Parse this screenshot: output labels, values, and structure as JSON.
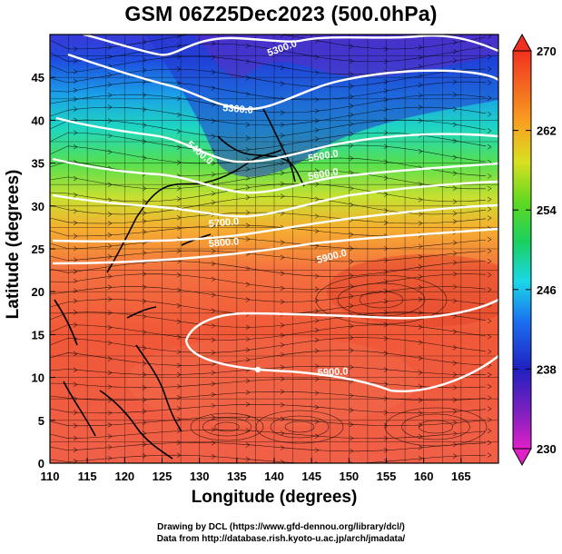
{
  "title": "GSM 06Z25Dec2023 (500.0hPa)",
  "x_axis": {
    "label": "Longitude (degrees)",
    "ticks": [
      "110",
      "115",
      "120",
      "125",
      "130",
      "135",
      "140",
      "145",
      "150",
      "155",
      "160",
      "165"
    ]
  },
  "y_axis": {
    "label": "Latitude  (degrees)",
    "ticks": [
      "0",
      "5",
      "10",
      "15",
      "20",
      "25",
      "30",
      "35",
      "40",
      "45"
    ]
  },
  "colorbar": {
    "ticks": [
      "270",
      "262",
      "254",
      "246",
      "238",
      "230"
    ]
  },
  "contour_labels": [
    "5300.0",
    "5300.0",
    "5400.0",
    "5500.0",
    "5600.0",
    "5700.0",
    "5800.0",
    "5900.0",
    "5900.0"
  ],
  "credits": {
    "line1": "Drawing by DCL (https://www.gfd-dennou.org/library/dcl/)",
    "line2": "Data from http://database.rish.kyoto-u.ac.jp/arch/jmadata/"
  },
  "chart_data": {
    "type": "heatmap",
    "description_of_fields": "temperature shading (K) with geopotential height contours (m) and wind streamlines",
    "x_range": [
      110,
      170
    ],
    "y_range": [
      0,
      50
    ],
    "x_unit": "degrees longitude",
    "y_unit": "degrees latitude",
    "color_range": [
      230,
      270
    ],
    "colorbar_ticks": [
      230,
      238,
      246,
      254,
      262,
      270
    ],
    "grid": true,
    "contours": [
      {
        "label": "5300.0",
        "lon": 142,
        "lat": 48.5
      },
      {
        "label": "5300.0",
        "lon": 137.5,
        "lat": 44
      },
      {
        "label": "5400.0",
        "lon": 130,
        "lat": 39.5
      },
      {
        "label": "5500.0",
        "lon": 149,
        "lat": 38
      },
      {
        "label": "5600.0",
        "lon": 150,
        "lat": 36
      },
      {
        "label": "5700.0",
        "lon": 130.5,
        "lat": 29.5
      },
      {
        "label": "5800.0",
        "lon": 130,
        "lat": 27.5
      },
      {
        "label": "5900.0",
        "lon": 151,
        "lat": 25.5
      },
      {
        "label": "5900.0",
        "lon": 149,
        "lat": 11
      }
    ],
    "markers": [
      {
        "type": "white-dot",
        "lon": 137.3,
        "lat": 11.5
      }
    ]
  }
}
